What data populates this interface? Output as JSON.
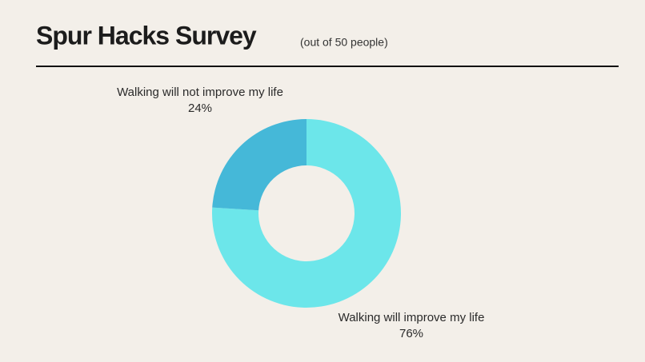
{
  "chart_data": {
    "type": "pie",
    "donut": true,
    "title": "Spur Hacks Survey",
    "subtitle": "(out of 50 people)",
    "categories": [
      "Walking will improve my life",
      "Walking will not improve my life"
    ],
    "values": [
      76,
      24
    ],
    "value_labels": [
      "76%",
      "24%"
    ],
    "colors": [
      "#6ce6ea",
      "#45b8d8"
    ]
  }
}
